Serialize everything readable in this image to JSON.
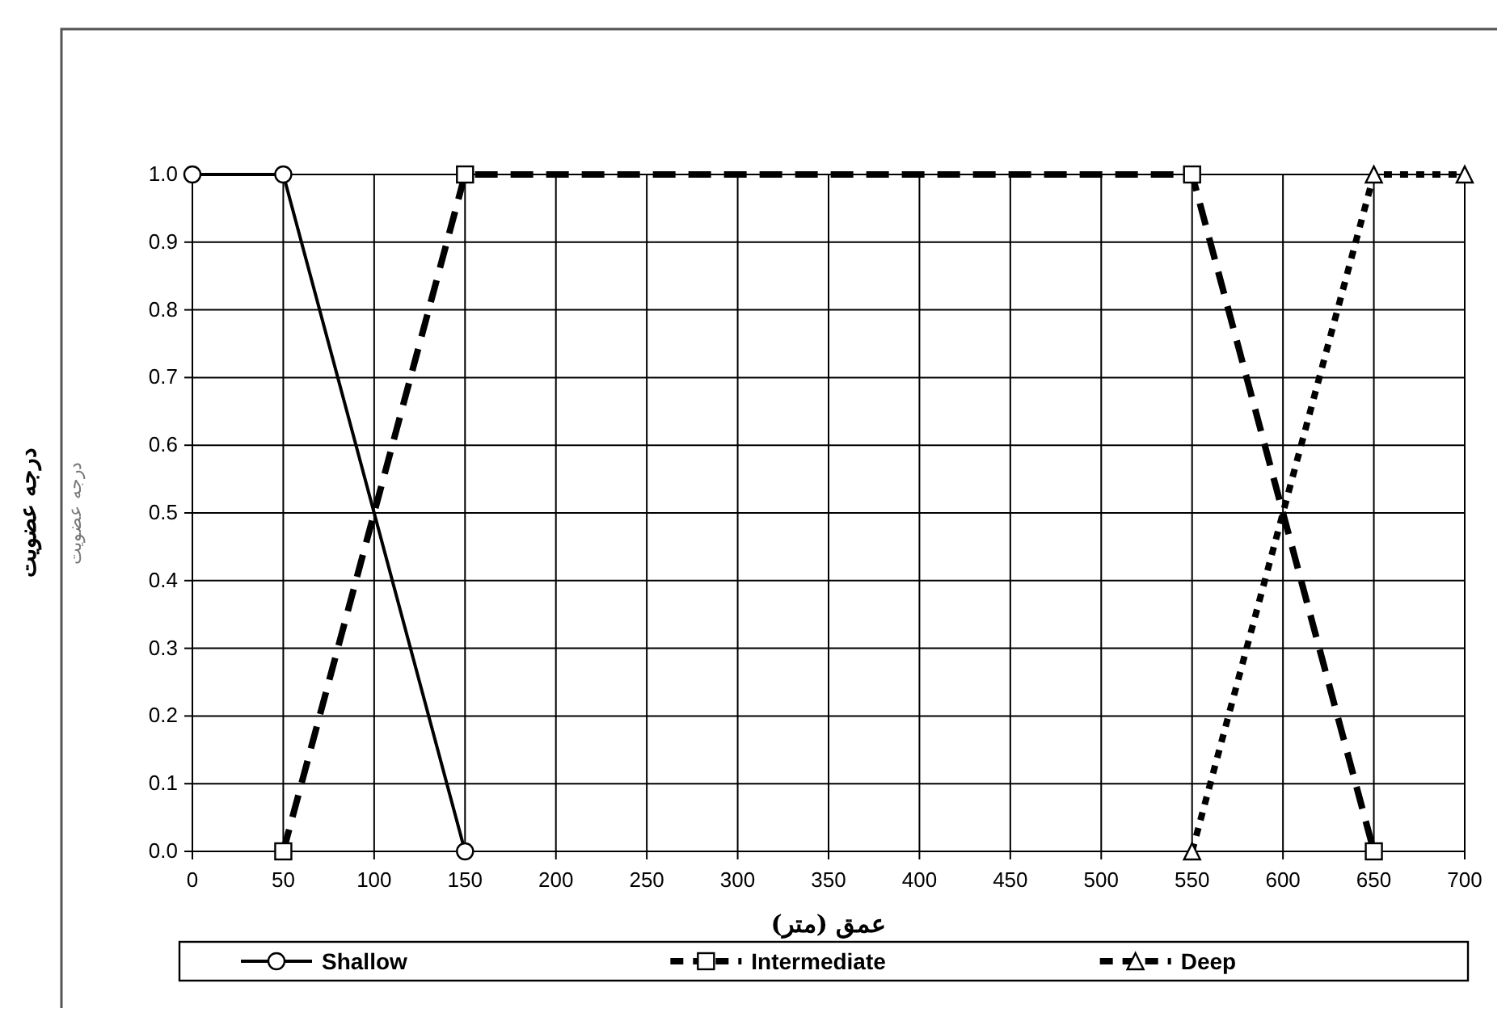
{
  "chart_data": {
    "type": "line",
    "xlabel": "عمق (متر)",
    "ylabel": "درجه عضویت",
    "annotations": [
      "درجه عضویت"
    ],
    "xlim": [
      0,
      700
    ],
    "xticks": [
      0,
      50,
      100,
      150,
      200,
      250,
      300,
      350,
      400,
      450,
      500,
      550,
      600,
      650,
      700
    ],
    "ylim": [
      0,
      1
    ],
    "yticks": [
      {
        "value": 0,
        "label": "0.0"
      },
      {
        "value": 0.1,
        "label": "0.1"
      },
      {
        "value": 0.2,
        "label": "0.2"
      },
      {
        "value": 0.3,
        "label": "0.3"
      },
      {
        "value": 0.4,
        "label": "0.4"
      },
      {
        "value": 0.5,
        "label": "0.5"
      },
      {
        "value": 0.6,
        "label": "0.6"
      },
      {
        "value": 0.7,
        "label": "0.7"
      },
      {
        "value": 0.8,
        "label": "0.8"
      },
      {
        "value": 0.9,
        "label": "0.9"
      },
      {
        "value": 1,
        "label": "1.0"
      }
    ],
    "grid": true,
    "legend": "bottom",
    "series": [
      {
        "name": "Shallow",
        "color": "#000000",
        "x": [
          0,
          50,
          150
        ],
        "values": [
          1,
          1,
          0
        ],
        "marker": "circle",
        "line_style": "solid"
      },
      {
        "name": "Intermediate",
        "color": "#000000",
        "x": [
          50,
          150,
          550,
          650
        ],
        "values": [
          0,
          1,
          1,
          0
        ],
        "marker": "square",
        "line_style": "dashed"
      },
      {
        "name": "Deep",
        "color": "#000000",
        "x": [
          550,
          650,
          700
        ],
        "values": [
          0,
          1,
          1
        ],
        "marker": "triangle",
        "line_style": "dotted"
      }
    ]
  }
}
